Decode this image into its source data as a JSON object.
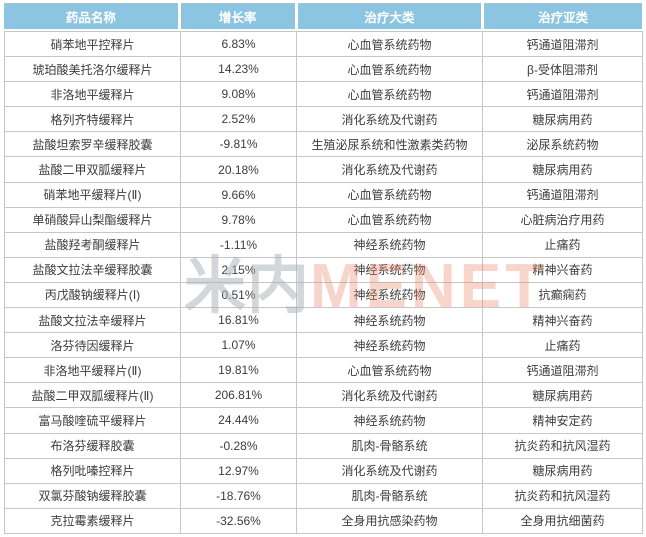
{
  "chart_data": {
    "type": "table",
    "title": "",
    "columns": [
      "药品名称",
      "增长率",
      "治疗大类",
      "治疗亚类"
    ],
    "rows": [
      {
        "name": "硝苯地平控释片",
        "growth": "6.83%",
        "category": "心血管系统药物",
        "subcategory": "钙通道阻滞剂"
      },
      {
        "name": "琥珀酸美托洛尔缓释片",
        "growth": "14.23%",
        "category": "心血管系统药物",
        "subcategory": "β-受体阻滞剂"
      },
      {
        "name": "非洛地平缓释片",
        "growth": "9.08%",
        "category": "心血管系统药物",
        "subcategory": "钙通道阻滞剂"
      },
      {
        "name": "格列齐特缓释片",
        "growth": "2.52%",
        "category": "消化系统及代谢药",
        "subcategory": "糖尿病用药"
      },
      {
        "name": "盐酸坦索罗辛缓释胶囊",
        "growth": "-9.81%",
        "category": "生殖泌尿系统和性激素类药物",
        "subcategory": "泌尿系统药物"
      },
      {
        "name": "盐酸二甲双胍缓释片",
        "growth": "20.18%",
        "category": "消化系统及代谢药",
        "subcategory": "糖尿病用药"
      },
      {
        "name": "硝苯地平缓释片(Ⅱ)",
        "growth": "9.66%",
        "category": "心血管系统药物",
        "subcategory": "钙通道阻滞剂"
      },
      {
        "name": "单硝酸异山梨酯缓释片",
        "growth": "9.78%",
        "category": "心血管系统药物",
        "subcategory": "心脏病治疗用药"
      },
      {
        "name": "盐酸羟考酮缓释片",
        "growth": "-1.11%",
        "category": "神经系统药物",
        "subcategory": "止痛药"
      },
      {
        "name": "盐酸文拉法辛缓释胶囊",
        "growth": "2.15%",
        "category": "神经系统药物",
        "subcategory": "精神兴奋药"
      },
      {
        "name": "丙戊酸钠缓释片(Ⅰ)",
        "growth": "0.51%",
        "category": "神经系统药物",
        "subcategory": "抗癫痫药"
      },
      {
        "name": "盐酸文拉法辛缓释片",
        "growth": "16.81%",
        "category": "神经系统药物",
        "subcategory": "精神兴奋药"
      },
      {
        "name": "洛芬待因缓释片",
        "growth": "1.07%",
        "category": "神经系统药物",
        "subcategory": "止痛药"
      },
      {
        "name": "非洛地平缓释片(Ⅱ)",
        "growth": "19.81%",
        "category": "心血管系统药物",
        "subcategory": "钙通道阻滞剂"
      },
      {
        "name": "盐酸二甲双胍缓释片(Ⅱ)",
        "growth": "206.81%",
        "category": "消化系统及代谢药",
        "subcategory": "糖尿病用药"
      },
      {
        "name": "富马酸喹硫平缓释片",
        "growth": "24.44%",
        "category": "神经系统药物",
        "subcategory": "精神安定药"
      },
      {
        "name": "布洛芬缓释胶囊",
        "growth": "-0.28%",
        "category": "肌肉-骨骼系统",
        "subcategory": "抗炎药和抗风湿药"
      },
      {
        "name": "格列吡嗪控释片",
        "growth": "12.97%",
        "category": "消化系统及代谢药",
        "subcategory": "糖尿病用药"
      },
      {
        "name": "双氯芬酸钠缓释胶囊",
        "growth": "-18.76%",
        "category": "肌肉-骨骼系统",
        "subcategory": "抗炎药和抗风湿药"
      },
      {
        "name": "克拉霉素缓释片",
        "growth": "-32.56%",
        "category": "全身用抗感染药物",
        "subcategory": "全身用抗细菌药"
      }
    ],
    "layout": {
      "header_bg": "#8CC5E2",
      "header_text_color": "#FFFFFF",
      "border_color": "#C6C6C6",
      "body_text_color": "#3D3D3D",
      "grid": true
    }
  },
  "watermark": {
    "part_cn": "米内",
    "part_en": "MENET"
  }
}
